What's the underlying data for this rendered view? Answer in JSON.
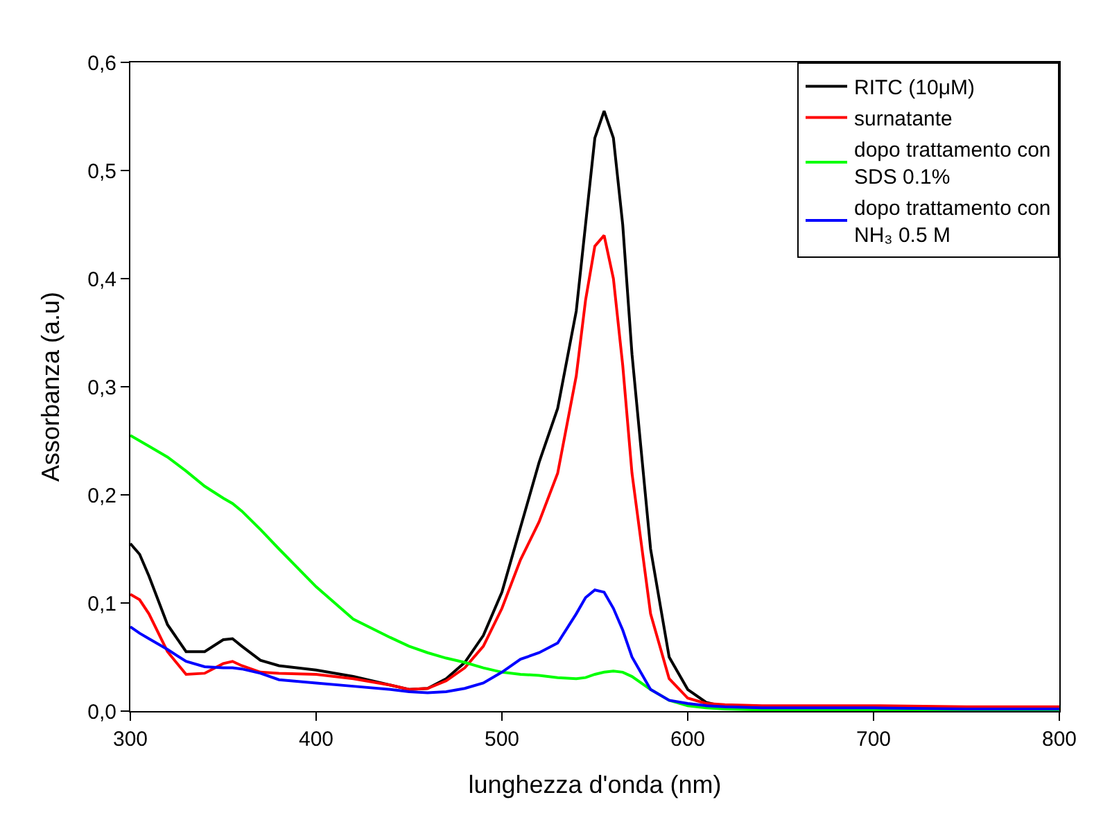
{
  "chart_data": {
    "type": "line",
    "xlabel": "lunghezza d'onda (nm)",
    "ylabel": "Assorbanza (a.u)",
    "x": [
      300,
      305,
      310,
      320,
      330,
      340,
      350,
      355,
      360,
      370,
      380,
      400,
      420,
      440,
      450,
      460,
      470,
      480,
      490,
      500,
      510,
      520,
      530,
      540,
      545,
      550,
      555,
      560,
      565,
      570,
      580,
      590,
      600,
      610,
      620,
      640,
      660,
      700,
      750,
      800
    ],
    "series": [
      {
        "name": "RITC (10μM)",
        "color": "#000000",
        "values": [
          0.155,
          0.145,
          0.125,
          0.08,
          0.055,
          0.055,
          0.066,
          0.067,
          0.06,
          0.047,
          0.042,
          0.038,
          0.032,
          0.024,
          0.02,
          0.021,
          0.03,
          0.045,
          0.07,
          0.11,
          0.17,
          0.23,
          0.28,
          0.37,
          0.45,
          0.53,
          0.555,
          0.53,
          0.45,
          0.33,
          0.15,
          0.05,
          0.02,
          0.008,
          0.004,
          0.002,
          0.002,
          0.003,
          0.003,
          0.003
        ]
      },
      {
        "name": "surnatante",
        "color": "#ff0000",
        "values": [
          0.108,
          0.103,
          0.09,
          0.055,
          0.034,
          0.035,
          0.044,
          0.046,
          0.042,
          0.036,
          0.035,
          0.034,
          0.03,
          0.024,
          0.02,
          0.021,
          0.028,
          0.04,
          0.06,
          0.095,
          0.14,
          0.175,
          0.22,
          0.31,
          0.38,
          0.43,
          0.44,
          0.4,
          0.32,
          0.22,
          0.09,
          0.03,
          0.012,
          0.007,
          0.006,
          0.005,
          0.005,
          0.005,
          0.004,
          0.004
        ]
      },
      {
        "name": "dopo trattamento con\nSDS 0.1%",
        "color": "#00ff00",
        "values": [
          0.255,
          0.25,
          0.245,
          0.235,
          0.222,
          0.208,
          0.197,
          0.192,
          0.185,
          0.168,
          0.15,
          0.115,
          0.085,
          0.068,
          0.06,
          0.054,
          0.049,
          0.045,
          0.04,
          0.036,
          0.034,
          0.033,
          0.031,
          0.03,
          0.031,
          0.034,
          0.036,
          0.037,
          0.036,
          0.032,
          0.02,
          0.01,
          0.005,
          0.003,
          0.002,
          0.001,
          0.001,
          0.001,
          0.001,
          0.001
        ]
      },
      {
        "name": "dopo trattamento con\nNH₃ 0.5 M",
        "color": "#0000ff",
        "values": [
          0.078,
          0.072,
          0.067,
          0.057,
          0.046,
          0.041,
          0.04,
          0.04,
          0.039,
          0.035,
          0.029,
          0.026,
          0.023,
          0.02,
          0.018,
          0.017,
          0.018,
          0.021,
          0.026,
          0.036,
          0.048,
          0.054,
          0.063,
          0.09,
          0.105,
          0.112,
          0.11,
          0.095,
          0.075,
          0.05,
          0.02,
          0.01,
          0.007,
          0.005,
          0.004,
          0.003,
          0.003,
          0.003,
          0.002,
          0.002
        ]
      }
    ],
    "xlim": [
      300,
      800
    ],
    "xticks": [
      300,
      400,
      500,
      600,
      700,
      800
    ],
    "ylim": [
      0,
      0.6
    ],
    "yticks": [
      {
        "value": 0,
        "label": "0,0"
      },
      {
        "value": 0.1,
        "label": "0,1"
      },
      {
        "value": 0.2,
        "label": "0,2"
      },
      {
        "value": 0.3,
        "label": "0,3"
      },
      {
        "value": 0.4,
        "label": "0,4"
      },
      {
        "value": 0.5,
        "label": "0,5"
      },
      {
        "value": 0.6,
        "label": "0,6"
      }
    ],
    "legend": "top right",
    "marker": "none",
    "line_style": "solid"
  }
}
